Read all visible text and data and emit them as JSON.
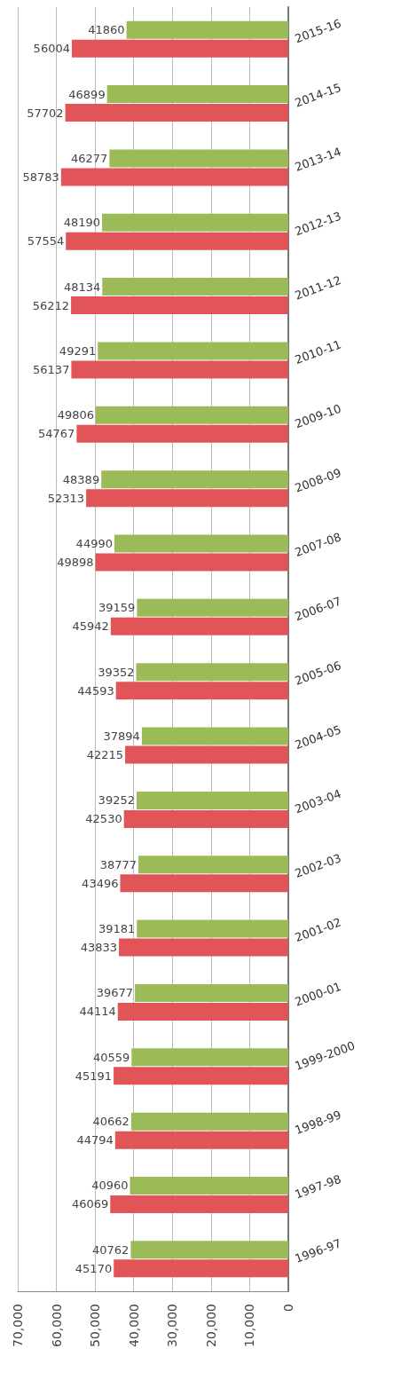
{
  "chart_data": {
    "type": "bar",
    "orientation": "horizontal",
    "categories": [
      "2015-16",
      "2014-15",
      "2013-14",
      "2012-13",
      "2011-12",
      "2010-11",
      "2009-10",
      "2008-09",
      "2007-08",
      "2006-07",
      "2005-06",
      "2004-05",
      "2003-04",
      "2002-03",
      "2001-02",
      "2000-01",
      "1999-2000",
      "1998-99",
      "1997-98",
      "1996-97"
    ],
    "series": [
      {
        "color": "#9bbb59",
        "values": [
          41860,
          46899,
          46277,
          48190,
          48134,
          49291,
          49806,
          48389,
          44990,
          39159,
          39352,
          37894,
          39252,
          38777,
          39181,
          39677,
          40559,
          40662,
          40960,
          40762
        ]
      },
      {
        "color": "#e15559",
        "values": [
          56004,
          57702,
          58783,
          57554,
          56212,
          56137,
          54767,
          52313,
          49898,
          45942,
          44593,
          42215,
          42530,
          43496,
          43833,
          44114,
          45191,
          44794,
          46069,
          45170
        ]
      }
    ],
    "xlim": [
      70000,
      0
    ],
    "xticks": [
      {
        "value": 70000,
        "label": "70,000"
      },
      {
        "value": 60000,
        "label": "60,000"
      },
      {
        "value": 50000,
        "label": "50,000"
      },
      {
        "value": 40000,
        "label": "40,000"
      },
      {
        "value": 30000,
        "label": "30,000"
      },
      {
        "value": 20000,
        "label": "20,000"
      },
      {
        "value": 10000,
        "label": "10,000"
      },
      0
    ],
    "grid": "x",
    "data_labels": true
  }
}
